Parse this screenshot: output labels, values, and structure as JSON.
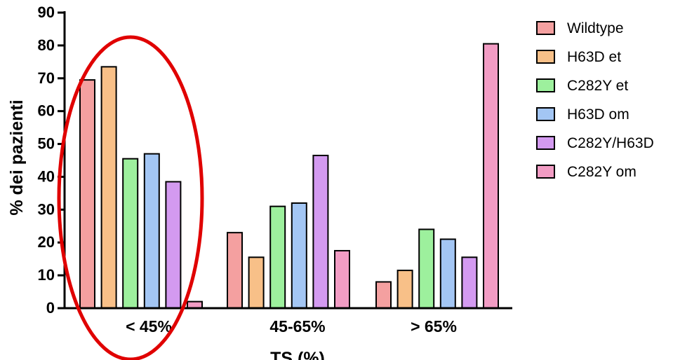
{
  "chart_data": {
    "type": "bar",
    "title": "",
    "xlabel": "TS (%)",
    "ylabel": "% dei pazienti",
    "ylim": [
      0,
      90
    ],
    "yticks": [
      0,
      10,
      20,
      30,
      40,
      50,
      60,
      70,
      80,
      90
    ],
    "categories": [
      "< 45%",
      "45-65%",
      "> 65%"
    ],
    "grid": false,
    "legend_position": "right",
    "series": [
      {
        "name": "Wildtype",
        "color": "#f4a0a0",
        "values": [
          69.5,
          23,
          8
        ]
      },
      {
        "name": "H63D et",
        "color": "#f8c088",
        "values": [
          73.5,
          15.5,
          11.5
        ]
      },
      {
        "name": "C282Y et",
        "color": "#9df09d",
        "values": [
          45.5,
          31,
          24
        ]
      },
      {
        "name": "H63D om",
        "color": "#a3c6f4",
        "values": [
          47,
          32,
          21
        ]
      },
      {
        "name": "C282Y/H63D",
        "color": "#d39af0",
        "values": [
          38.5,
          46.5,
          15.5
        ]
      },
      {
        "name": "C282Y om",
        "color": "#f29cc4",
        "values": [
          2,
          17.5,
          80.5
        ]
      }
    ],
    "annotation": {
      "shape": "ellipse",
      "color": "#e00000",
      "highlights": "< 45%"
    }
  }
}
